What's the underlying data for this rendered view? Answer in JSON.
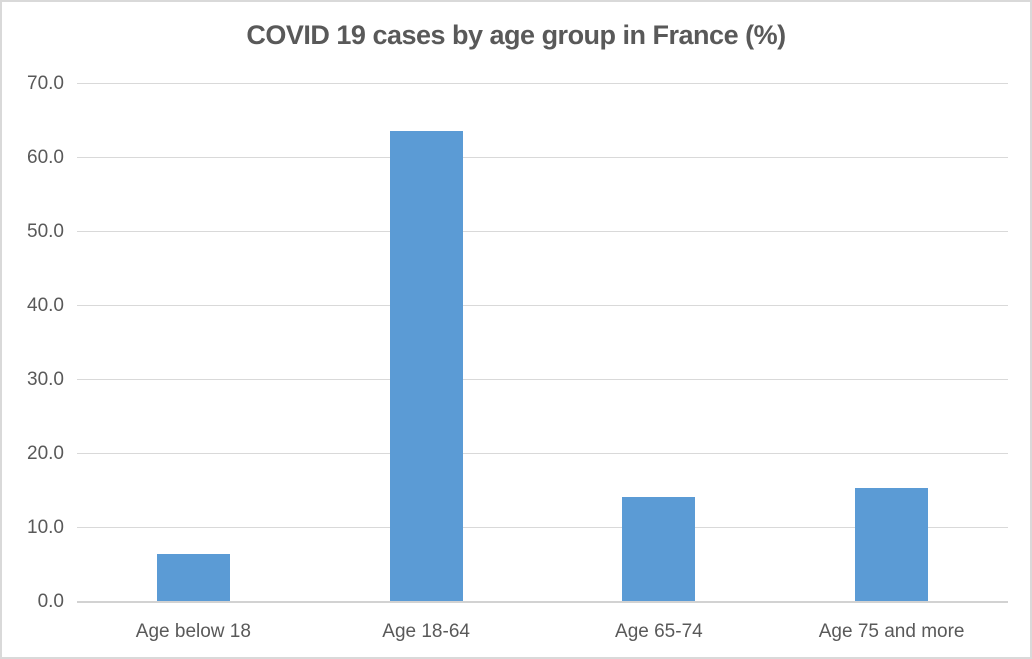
{
  "chart_data": {
    "type": "bar",
    "title": "COVID 19 cases by age group in France (%)",
    "categories": [
      "Age below 18",
      "Age 18-64",
      "Age 65-74",
      "Age 75 and more"
    ],
    "values": [
      6.5,
      63.6,
      14.2,
      15.4
    ],
    "xlabel": "",
    "ylabel": "",
    "ylim": [
      0,
      70
    ],
    "y_tick_step": 10,
    "y_tick_labels": [
      "0.0",
      "10.0",
      "20.0",
      "30.0",
      "40.0",
      "50.0",
      "60.0",
      "70.0"
    ],
    "grid": true,
    "legend_position": "none",
    "bar_color": "#5b9bd5",
    "series_name": ""
  },
  "colors": {
    "bar_fill": "#5b9bd5",
    "title_text": "#595959",
    "axis_text": "#595959",
    "gridline": "#d9d9d9",
    "axis_line": "#d2d2d2",
    "frame_border": "#d9d9d9",
    "background": "#ffffff"
  }
}
